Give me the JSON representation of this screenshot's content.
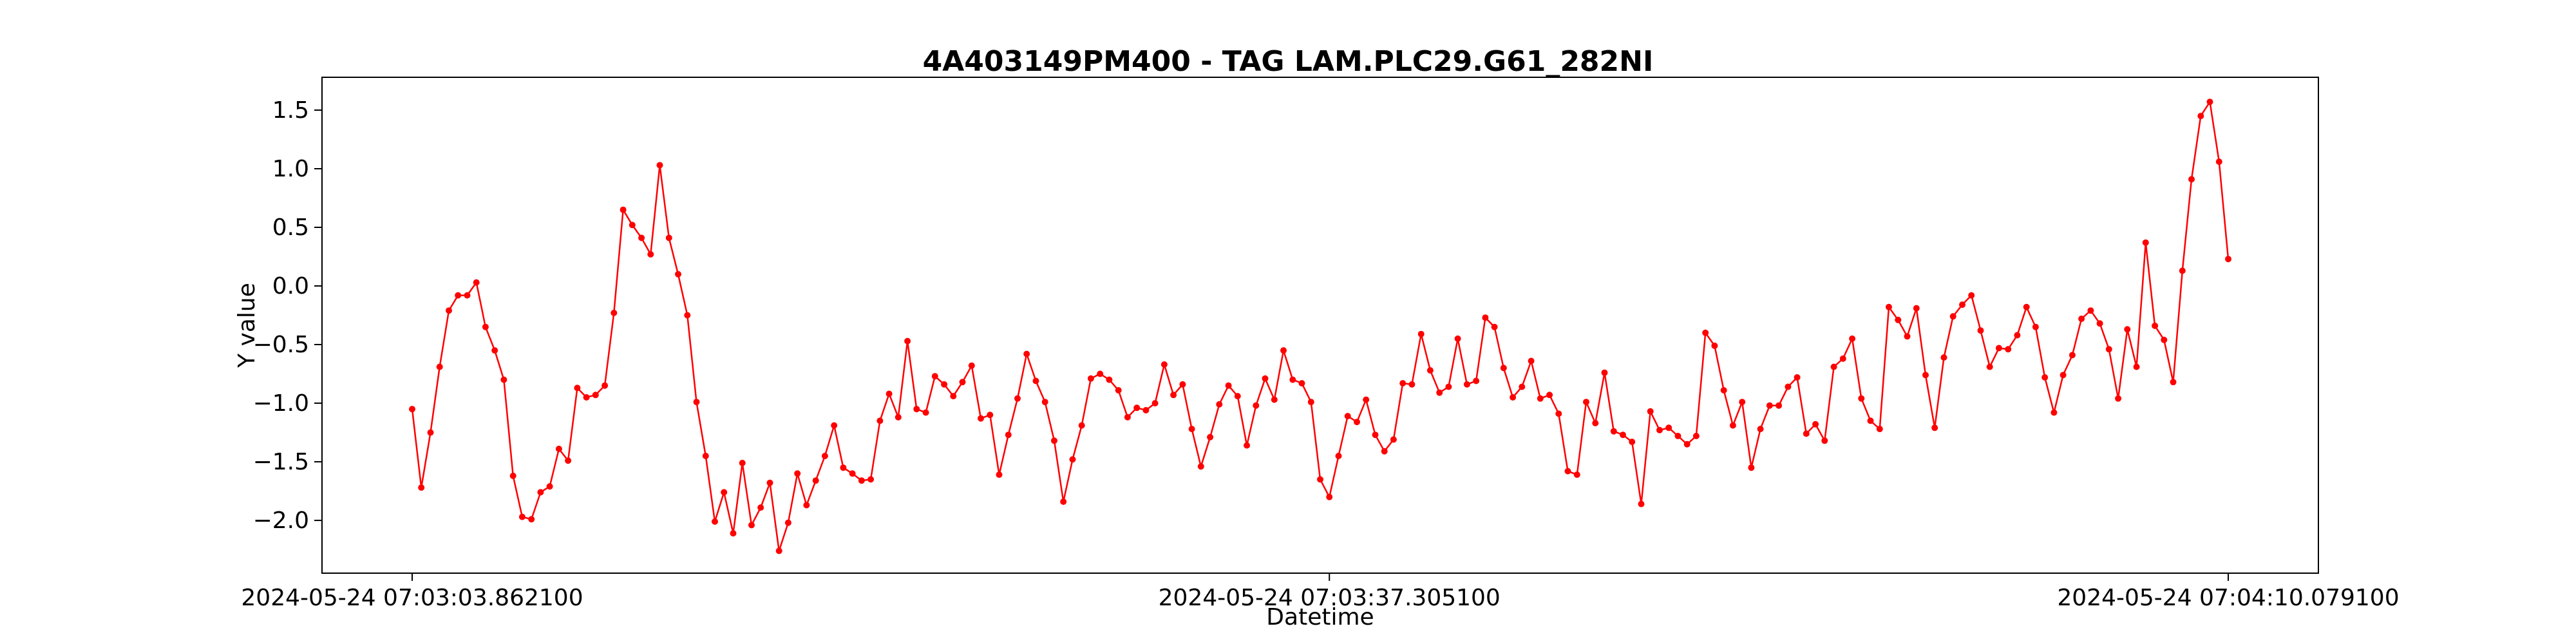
{
  "chart_data": {
    "type": "line",
    "title": "4A403149PM400 - TAG LAM.PLC29.G61_282NI",
    "xlabel": "Datetime",
    "ylabel": "Y value",
    "ylim": [
      -2.45,
      1.78
    ],
    "yticks": [
      {
        "value": 1.5,
        "label": "1.5"
      },
      {
        "value": 1.0,
        "label": "1.0"
      },
      {
        "value": 0.5,
        "label": "0.5"
      },
      {
        "value": 0.0,
        "label": "0.0"
      },
      {
        "value": -0.5,
        "label": "−0.5"
      },
      {
        "value": -1.0,
        "label": "−1.0"
      },
      {
        "value": -1.5,
        "label": "−1.5"
      },
      {
        "value": -2.0,
        "label": "−2.0"
      }
    ],
    "xticks": [
      {
        "index": 0,
        "label": "2024-05-24 07:03:03.862100"
      },
      {
        "index": 100,
        "label": "2024-05-24 07:03:37.305100"
      },
      {
        "index": 198,
        "label": "2024-05-24 07:04:10.079100"
      }
    ],
    "grid": false,
    "series": [
      {
        "color": "#ff0000",
        "marker": "circle",
        "values": [
          -1.05,
          -1.72,
          -1.25,
          -0.69,
          -0.21,
          -0.08,
          -0.08,
          0.03,
          -0.35,
          -0.55,
          -0.8,
          -1.62,
          -1.97,
          -1.99,
          -1.76,
          -1.71,
          -1.39,
          -1.49,
          -0.87,
          -0.95,
          -0.93,
          -0.85,
          -0.23,
          0.65,
          0.52,
          0.41,
          0.27,
          1.03,
          0.41,
          0.1,
          -0.25,
          -0.99,
          -1.45,
          -2.01,
          -1.76,
          -2.11,
          -1.51,
          -2.04,
          -1.89,
          -1.68,
          -2.26,
          -2.02,
          -1.6,
          -1.87,
          -1.66,
          -1.45,
          -1.19,
          -1.55,
          -1.6,
          -1.66,
          -1.65,
          -1.15,
          -0.92,
          -1.12,
          -0.47,
          -1.05,
          -1.08,
          -0.77,
          -0.84,
          -0.94,
          -0.82,
          -0.68,
          -1.13,
          -1.1,
          -1.61,
          -1.27,
          -0.96,
          -0.58,
          -0.81,
          -0.99,
          -1.32,
          -1.84,
          -1.48,
          -1.19,
          -0.79,
          -0.75,
          -0.8,
          -0.89,
          -1.12,
          -1.04,
          -1.06,
          -1.0,
          -0.67,
          -0.93,
          -0.84,
          -1.22,
          -1.54,
          -1.29,
          -1.01,
          -0.85,
          -0.94,
          -1.36,
          -1.02,
          -0.79,
          -0.97,
          -0.55,
          -0.8,
          -0.83,
          -0.99,
          -1.65,
          -1.8,
          -1.45,
          -1.11,
          -1.16,
          -0.97,
          -1.27,
          -1.41,
          -1.31,
          -0.83,
          -0.84,
          -0.41,
          -0.72,
          -0.91,
          -0.86,
          -0.45,
          -0.84,
          -0.81,
          -0.27,
          -0.35,
          -0.7,
          -0.95,
          -0.86,
          -0.64,
          -0.96,
          -0.93,
          -1.09,
          -1.58,
          -1.61,
          -0.99,
          -1.17,
          -0.74,
          -1.24,
          -1.27,
          -1.33,
          -1.86,
          -1.07,
          -1.23,
          -1.21,
          -1.28,
          -1.35,
          -1.28,
          -0.4,
          -0.51,
          -0.89,
          -1.19,
          -0.99,
          -1.55,
          -1.22,
          -1.02,
          -1.02,
          -0.86,
          -0.78,
          -1.26,
          -1.18,
          -1.32,
          -0.69,
          -0.62,
          -0.45,
          -0.96,
          -1.15,
          -1.22,
          -0.18,
          -0.29,
          -0.43,
          -0.19,
          -0.76,
          -1.21,
          -0.61,
          -0.26,
          -0.16,
          -0.08,
          -0.38,
          -0.69,
          -0.53,
          -0.54,
          -0.42,
          -0.18,
          -0.35,
          -0.78,
          -1.08,
          -0.76,
          -0.59,
          -0.28,
          -0.21,
          -0.32,
          -0.54,
          -0.96,
          -0.37,
          -0.69,
          0.37,
          -0.34,
          -0.46,
          -0.82,
          0.13,
          0.91,
          1.45,
          1.57,
          1.06,
          0.23
        ]
      }
    ]
  }
}
